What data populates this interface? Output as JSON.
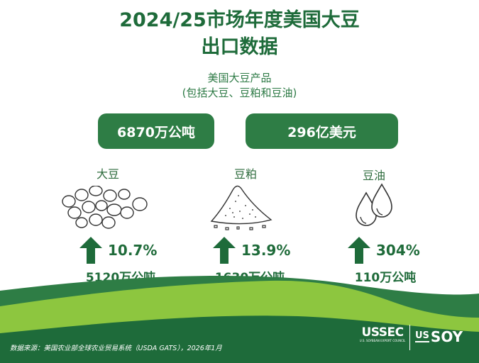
{
  "title": {
    "line1": "2024/25市场年度美国大豆",
    "line2": "出口数据"
  },
  "subtitle": {
    "line1": "美国大豆产品",
    "line2": "(包括大豆、豆粕和豆油)"
  },
  "totals": {
    "volume": "6870万公吨",
    "value": "296亿美元"
  },
  "products": [
    {
      "name": "大豆",
      "icon": "soybeans-icon",
      "growth": "10.7%",
      "amount": "5120万公吨"
    },
    {
      "name": "豆粕",
      "icon": "soybean-meal-pile-icon",
      "growth": "13.9%",
      "amount": "1630万公吨"
    },
    {
      "name": "豆油",
      "icon": "oil-drops-icon",
      "growth": "304%",
      "amount": "110万公吨"
    }
  ],
  "footer": {
    "source": "数据来源：美国农业部全球农业贸易系统（USDA GATS），2026年1月",
    "ussec_logo": "USSEC",
    "ussec_tagline": "U.S. SOYBEAN EXPORT COUNCIL",
    "ussoy_us": "US",
    "ussoy_soy": "SOY"
  },
  "colors": {
    "dark_green": "#1e6b3a",
    "mid_green": "#2e7d45",
    "light_green": "#8dc63f"
  }
}
